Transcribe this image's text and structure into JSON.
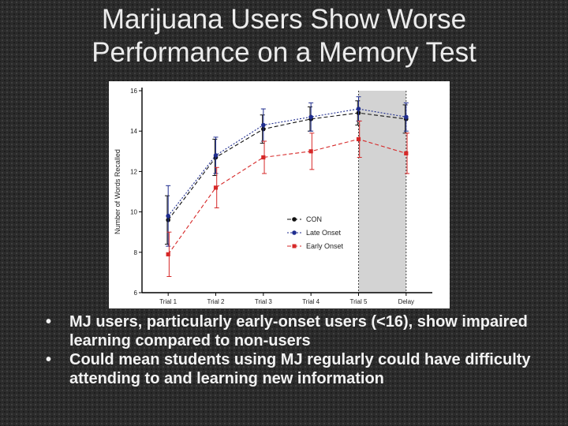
{
  "slide": {
    "title_line1": "Marijuana Users Show Worse",
    "title_line2": "Performance on a Memory Test",
    "bullets": [
      "MJ users, particularly early-onset users (<16), show impaired learning compared to non-users",
      "Could mean students using MJ regularly could have difficulty attending to and learning new information"
    ]
  },
  "chart_data": {
    "type": "line",
    "title": "",
    "xlabel": "",
    "ylabel": "Number of Words Recalled",
    "categories": [
      "Trial 1",
      "Trial 2",
      "Trial 3",
      "Trial 4",
      "Trial 5",
      "Delay"
    ],
    "ylim": [
      6,
      16
    ],
    "yticks": [
      "6",
      "8",
      "10",
      "12",
      "14",
      "16"
    ],
    "grid": false,
    "legend": "center-right",
    "shaded_categories": [
      "Trial 5",
      "Delay"
    ],
    "series": [
      {
        "name": "CON",
        "color": "#111111",
        "marker": "circle",
        "values": [
          9.6,
          12.7,
          14.1,
          14.6,
          14.9,
          14.6
        ],
        "errors": [
          1.2,
          0.9,
          0.7,
          0.6,
          0.6,
          0.7
        ]
      },
      {
        "name": "Late Onset",
        "color": "#1f2d8f",
        "marker": "circle",
        "values": [
          9.8,
          12.8,
          14.3,
          14.7,
          15.1,
          14.7
        ],
        "errors": [
          1.5,
          0.9,
          0.8,
          0.7,
          0.6,
          0.7
        ]
      },
      {
        "name": "Early Onset",
        "color": "#d62828",
        "marker": "square",
        "values": [
          7.9,
          11.2,
          12.7,
          13.0,
          13.6,
          12.9
        ],
        "errors": [
          1.1,
          1.0,
          0.8,
          0.9,
          0.9,
          1.0
        ]
      }
    ]
  }
}
